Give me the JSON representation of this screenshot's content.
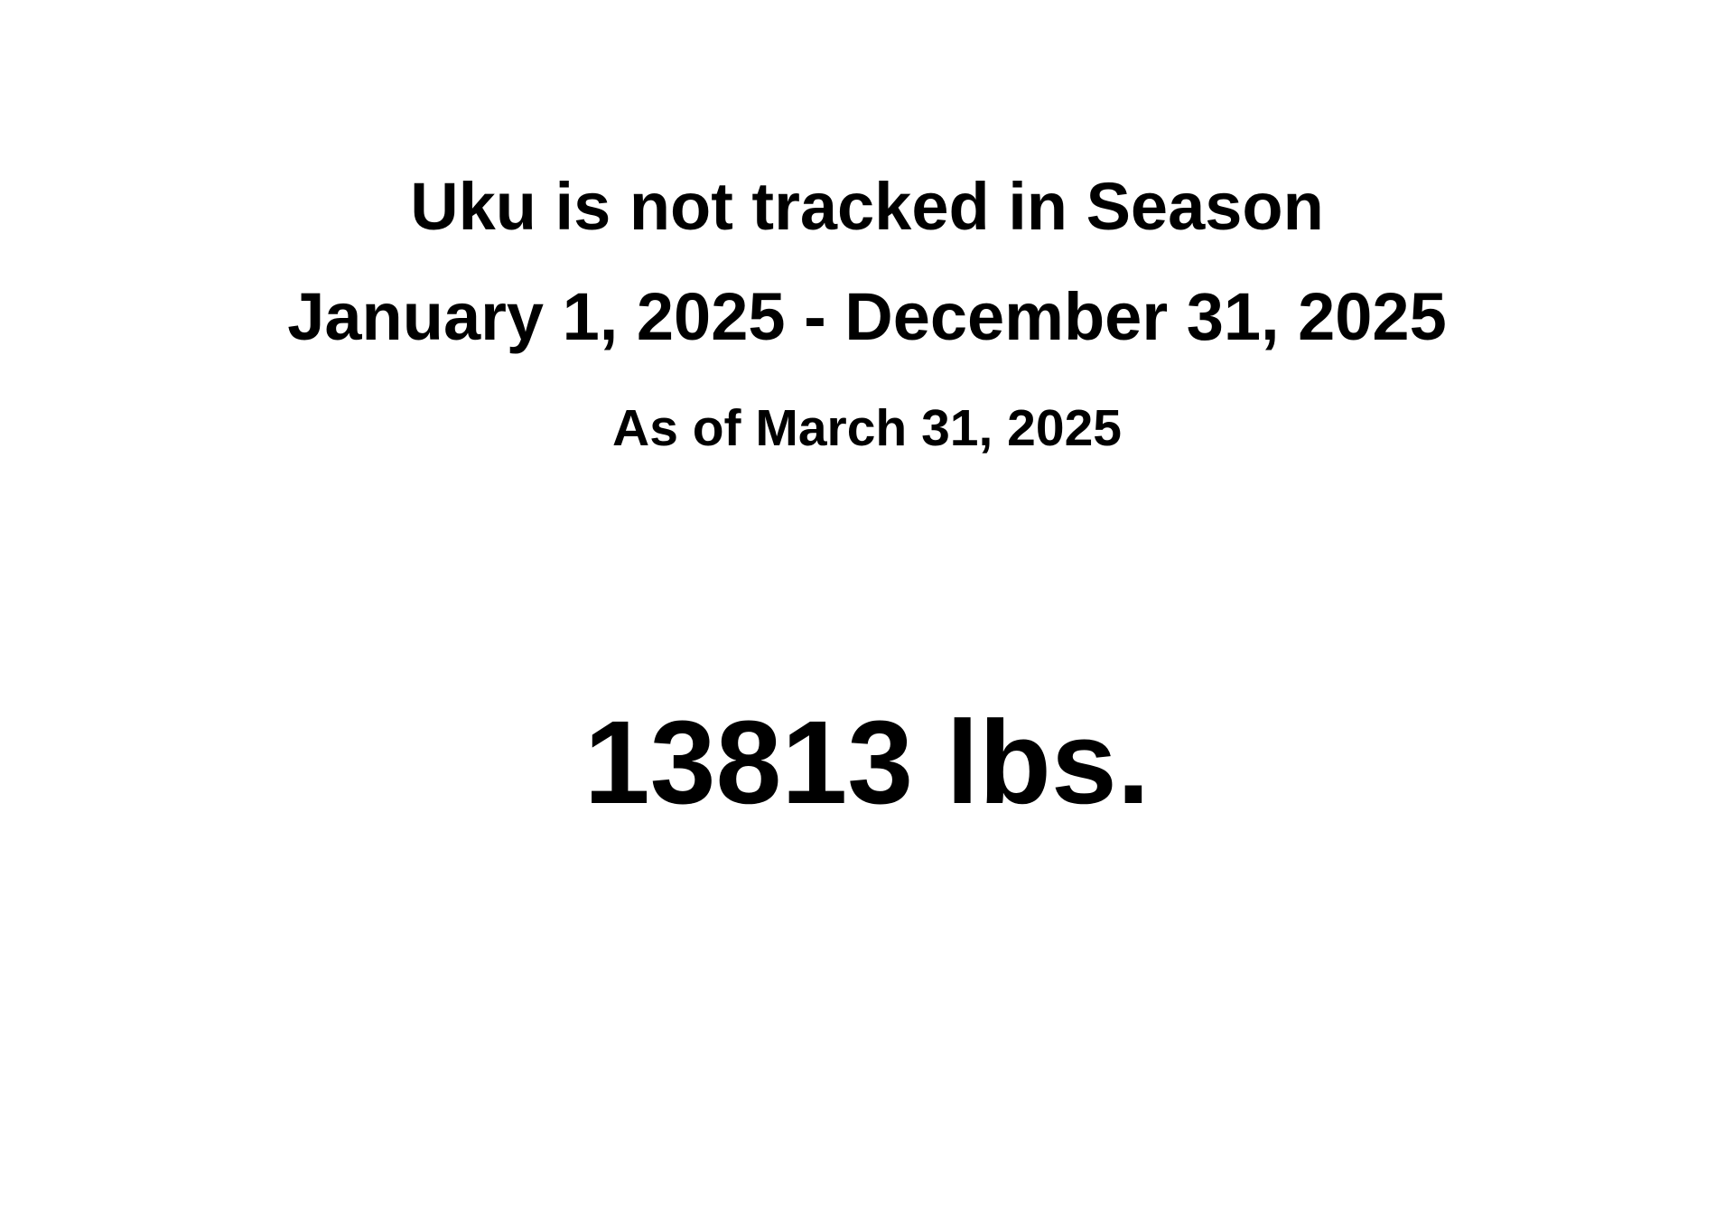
{
  "report": {
    "title": "Uku is not tracked in Season",
    "season_range": "January 1, 2025 - December 31, 2025",
    "as_of": "As of March 31, 2025",
    "total": "13813 lbs."
  },
  "colors": {
    "background": "#ffffff",
    "text": "#000000"
  }
}
